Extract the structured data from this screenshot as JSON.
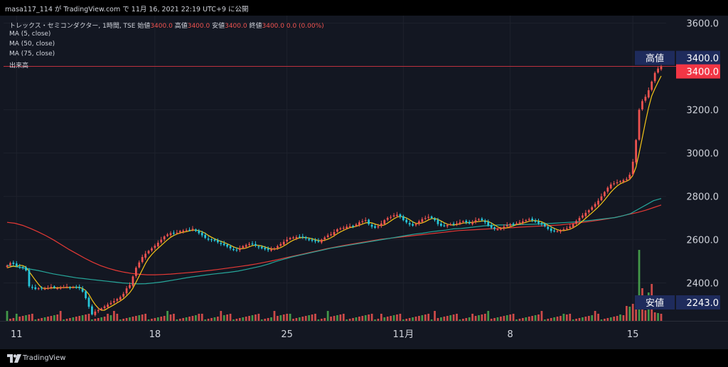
{
  "publish_line": "masa117_114 が TradingView.com で 11月 16, 2021 22:19 UTC+9 に公開",
  "symbol_line": {
    "name": "トレックス・セミコンダクター, 1時間, TSE",
    "open_label": "始値",
    "open": "3400.0",
    "high_label": "高値",
    "high": "3400.0",
    "low_label": "安値",
    "low": "3400.0",
    "close_label": "終値",
    "close": "3400.0",
    "change": "0.0 (0.00%)"
  },
  "indicators": [
    "MA (5, close)",
    "MA (50, close)",
    "MA (75, close)",
    "出来高"
  ],
  "footer_brand": "TradingView",
  "colors": {
    "background": "#131722",
    "up": "#ef5350",
    "down": "#26c6da",
    "ma5": "#f5c518",
    "ma50": "#26a69a",
    "ma75": "#e53935",
    "volume_up": "#ef5350",
    "volume_down": "#4caf50",
    "label_box": "#1e2b5c",
    "last_price_box": "#f23645"
  },
  "chart_data": {
    "type": "candlestick",
    "title": "トレックス・セミコンダクター, 1時間, TSE",
    "ylim": [
      2230,
      3620
    ],
    "y_ticks": [
      2400,
      2600,
      2800,
      3000,
      3200,
      3400,
      3600
    ],
    "y_tick_labels": [
      "2400.0",
      "2600.0",
      "2800.0",
      "3000.0",
      "3200.0",
      "3400.0",
      "3600.0"
    ],
    "x_ticks": [
      {
        "label": "11",
        "index": 3
      },
      {
        "label": "18",
        "index": 47
      },
      {
        "label": "25",
        "index": 89
      },
      {
        "label": "11月",
        "index": 126
      },
      {
        "label": "8",
        "index": 160
      },
      {
        "label": "15",
        "index": 199
      }
    ],
    "price_labels": [
      {
        "tag": "高値",
        "value": "3400.0",
        "price": 3400
      },
      {
        "tag": "",
        "value": "3400.0",
        "price": 3400
      },
      {
        "tag": "安値",
        "value": "2243.0",
        "price": 2243
      }
    ],
    "closes": [
      2480,
      2492,
      2488,
      2478,
      2472,
      2470,
      2458,
      2385,
      2378,
      2372,
      2376,
      2375,
      2374,
      2378,
      2382,
      2378,
      2376,
      2378,
      2380,
      2383,
      2378,
      2380,
      2380,
      2376,
      2360,
      2330,
      2290,
      2255,
      2268,
      2275,
      2282,
      2292,
      2300,
      2308,
      2316,
      2326,
      2335,
      2350,
      2375,
      2390,
      2430,
      2470,
      2495,
      2520,
      2535,
      2548,
      2560,
      2572,
      2586,
      2600,
      2615,
      2624,
      2630,
      2628,
      2632,
      2640,
      2642,
      2644,
      2645,
      2650,
      2640,
      2630,
      2620,
      2608,
      2600,
      2598,
      2595,
      2588,
      2580,
      2575,
      2568,
      2560,
      2552,
      2550,
      2560,
      2570,
      2575,
      2580,
      2578,
      2572,
      2565,
      2560,
      2556,
      2552,
      2555,
      2560,
      2570,
      2580,
      2590,
      2600,
      2608,
      2610,
      2612,
      2612,
      2610,
      2606,
      2598,
      2595,
      2592,
      2590,
      2600,
      2610,
      2620,
      2625,
      2635,
      2648,
      2652,
      2655,
      2660,
      2662,
      2662,
      2670,
      2680,
      2685,
      2690,
      2672,
      2660,
      2655,
      2662,
      2675,
      2690,
      2700,
      2705,
      2712,
      2715,
      2706,
      2690,
      2680,
      2670,
      2665,
      2672,
      2685,
      2695,
      2700,
      2705,
      2700,
      2690,
      2672,
      2664,
      2665,
      2668,
      2672,
      2670,
      2675,
      2680,
      2685,
      2680,
      2675,
      2680,
      2690,
      2695,
      2690,
      2680,
      2665,
      2655,
      2650,
      2648,
      2650,
      2660,
      2668,
      2672,
      2670,
      2675,
      2680,
      2685,
      2690,
      2695,
      2690,
      2682,
      2675,
      2670,
      2662,
      2650,
      2640,
      2638,
      2640,
      2642,
      2648,
      2652,
      2660,
      2672,
      2686,
      2700,
      2712,
      2724,
      2736,
      2750,
      2765,
      2780,
      2800,
      2820,
      2840,
      2855,
      2860,
      2865,
      2870,
      2875,
      2880,
      2900,
      2960,
      3060,
      3200,
      3240,
      3260,
      3290,
      3330,
      3370,
      3390,
      3400
    ],
    "ma5_start": [
      2470,
      2474,
      2478,
      2476,
      2470
    ],
    "ma50": [
      2482,
      2476,
      2470,
      2464,
      2458,
      2450,
      2442,
      2436,
      2430,
      2424,
      2420,
      2416,
      2412,
      2408,
      2404,
      2400,
      2398,
      2396,
      2397,
      2400,
      2404,
      2410,
      2416,
      2422,
      2428,
      2433,
      2438,
      2442,
      2446,
      2450,
      2455,
      2462,
      2470,
      2478,
      2488,
      2500,
      2510,
      2520,
      2528,
      2536,
      2544,
      2552,
      2560,
      2566,
      2572,
      2578,
      2584,
      2590,
      2596,
      2602,
      2608,
      2614,
      2620,
      2626,
      2630,
      2636,
      2640,
      2644,
      2650,
      2652,
      2656,
      2660,
      2664,
      2666,
      2668,
      2668,
      2669,
      2670,
      2671,
      2672,
      2674,
      2676,
      2678,
      2680,
      2682,
      2686,
      2690,
      2694,
      2698,
      2702,
      2710,
      2720,
      2740,
      2760,
      2780,
      2790
    ],
    "ma75": [
      2680,
      2676,
      2666,
      2652,
      2636,
      2618,
      2598,
      2576,
      2554,
      2534,
      2514,
      2496,
      2480,
      2468,
      2458,
      2450,
      2444,
      2440,
      2438,
      2438,
      2439,
      2441,
      2444,
      2447,
      2450,
      2454,
      2458,
      2462,
      2467,
      2472,
      2477,
      2482,
      2488,
      2495,
      2502,
      2510,
      2518,
      2526,
      2534,
      2542,
      2550,
      2558,
      2565,
      2572,
      2578,
      2584,
      2590,
      2596,
      2602,
      2606,
      2610,
      2614,
      2618,
      2622,
      2626,
      2630,
      2634,
      2638,
      2642,
      2644,
      2646,
      2648,
      2650,
      2652,
      2654,
      2656,
      2658,
      2660,
      2662,
      2664,
      2666,
      2668,
      2672,
      2676,
      2680,
      2685,
      2690,
      2696,
      2702,
      2710,
      2718,
      2726,
      2736,
      2748,
      2760
    ]
  }
}
